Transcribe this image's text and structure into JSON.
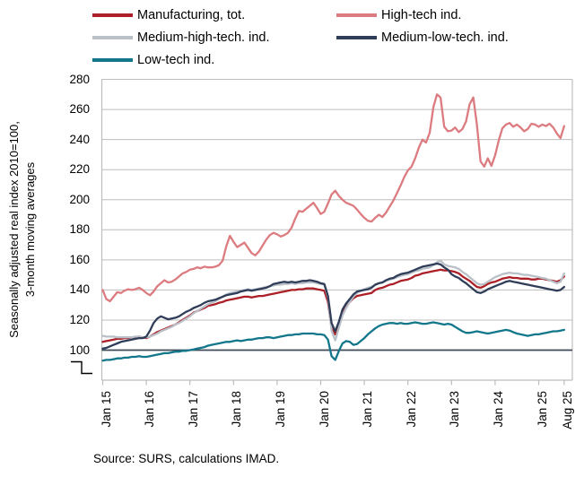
{
  "y_axis": {
    "title_line1": "Seasonally adjusted real index 2010=100,",
    "title_line2": "3-month moving averages",
    "tick_labels": [
      "280",
      "260",
      "240",
      "220",
      "200",
      "180",
      "160",
      "140",
      "120",
      "100"
    ]
  },
  "x_axis": {
    "tick_labels": [
      "Jan 15",
      "Jan 16",
      "Jan 17",
      "Jan 18",
      "Jan 19",
      "Jan 20",
      "Jan 21",
      "Jan 22",
      "Jan 23",
      "Jan 24",
      "Jan 25",
      "Aug 25"
    ]
  },
  "source": {
    "text": "Source: SURS, calculations IMAD."
  },
  "colors": {
    "gridline": "#BDBDBD",
    "reference_line_100": "#3E4A59",
    "text": "#000000"
  },
  "chart_data": {
    "type": "line",
    "title": "",
    "xlabel": "",
    "ylabel": "Seasonally adjusted real index 2010=100, 3-month moving averages",
    "x_unit": "month",
    "x_range": [
      "2015-01",
      "2025-08"
    ],
    "ylim": [
      80,
      280
    ],
    "y_ticks": [
      100,
      120,
      140,
      160,
      180,
      200,
      220,
      240,
      260,
      280
    ],
    "has_axis_break_below_100": true,
    "reference_line": 100,
    "grid": "horizontal",
    "legend_position": "top",
    "series": [
      {
        "name": "Manufacturing, tot.",
        "color": "#AC1F27",
        "values": [
          105.5,
          106,
          106.5,
          107,
          107.5,
          107.5,
          108,
          108,
          108.5,
          108.5,
          109,
          108.5,
          108,
          109,
          110.5,
          112,
          113,
          114,
          115,
          116,
          117,
          118.5,
          120,
          121.5,
          123,
          125,
          126,
          127,
          128,
          129.5,
          130,
          130.5,
          131.5,
          132,
          133,
          133.5,
          134,
          134.5,
          135,
          135.5,
          135.5,
          135,
          135.5,
          136,
          136,
          136.5,
          137,
          137.5,
          138,
          138.5,
          139,
          139.5,
          140,
          140,
          140.5,
          140.5,
          141,
          141,
          141,
          140.5,
          140,
          139.5,
          132,
          115,
          110.5,
          117,
          125,
          129,
          132,
          134.5,
          136,
          136.5,
          137,
          137.5,
          138,
          140,
          141,
          141.5,
          142.5,
          143.5,
          144,
          145,
          146,
          146.5,
          147,
          148,
          149.5,
          150,
          151,
          151.5,
          152,
          152.5,
          153,
          153.5,
          153,
          153,
          152.5,
          152,
          151,
          149,
          147.5,
          146,
          144,
          142,
          141.5,
          142.5,
          144,
          145,
          145.5,
          146.5,
          147.5,
          148,
          148.5,
          148,
          148,
          147.5,
          147.5,
          147.5,
          147,
          147,
          147.5,
          147.5,
          147,
          146.5,
          146,
          145.5,
          146.5,
          149
        ]
      },
      {
        "name": "High-tech ind.",
        "color": "#DC7B80",
        "values": [
          140,
          134,
          132.5,
          135.5,
          138.5,
          138,
          139.5,
          140.5,
          140,
          140.5,
          141.5,
          140,
          138,
          136.5,
          139,
          142.5,
          144.5,
          146.5,
          145,
          145.5,
          147,
          149,
          151,
          152,
          153.5,
          154,
          155,
          154.5,
          155.5,
          155,
          155,
          155.5,
          156.5,
          159.5,
          169,
          176,
          172,
          168.5,
          170,
          171.5,
          168,
          164.5,
          163,
          165.5,
          169.5,
          173.5,
          176.5,
          178,
          177,
          175.5,
          176.5,
          178,
          181.5,
          187.5,
          192.5,
          192,
          194,
          196,
          198,
          194.5,
          190.5,
          192,
          197.5,
          203.5,
          206,
          202.5,
          200,
          198,
          197,
          196,
          193.5,
          190.5,
          188,
          186,
          185.5,
          188,
          190,
          188.5,
          191.5,
          195.5,
          199.5,
          204.5,
          209.5,
          215,
          219.5,
          222,
          227.5,
          234.5,
          240,
          238,
          244.5,
          261.5,
          270,
          268,
          248.5,
          245.5,
          246,
          248,
          245,
          247,
          252,
          263.5,
          268,
          250,
          225.5,
          222,
          227.5,
          222.5,
          229.5,
          239.5,
          247.5,
          250,
          251,
          248.5,
          250,
          248,
          245.5,
          247,
          250.5,
          250,
          248.5,
          250,
          249,
          250.5,
          248,
          244,
          241,
          249
        ]
      },
      {
        "name": "Medium-high-tech. ind.",
        "color": "#B9C0C7",
        "values": [
          109.5,
          109,
          109,
          109,
          108.5,
          108.5,
          108.5,
          108.5,
          108.5,
          109,
          109,
          108.5,
          108.5,
          109,
          110,
          111,
          112.5,
          113.5,
          114.5,
          115.5,
          117,
          118,
          119.5,
          121,
          122.5,
          124.5,
          126,
          127.5,
          129,
          130.5,
          131.5,
          132.5,
          134,
          135.5,
          137,
          138,
          138.5,
          139,
          139.5,
          140,
          140.5,
          140,
          140.5,
          141,
          141.5,
          142,
          142.5,
          143,
          143.5,
          143.5,
          144,
          144,
          144.5,
          144,
          144.5,
          144.5,
          145,
          145,
          145,
          144.5,
          144,
          143.5,
          135,
          113,
          106.5,
          115,
          123,
          128,
          132,
          135.5,
          138,
          139.5,
          140.5,
          141.5,
          142,
          143.5,
          144.5,
          145,
          146,
          147,
          147.5,
          148.5,
          149.5,
          150,
          150.5,
          151.5,
          152.5,
          153,
          154,
          154.5,
          155,
          156.5,
          158.5,
          159.5,
          157,
          156,
          155.5,
          155,
          154,
          152,
          150.5,
          148.5,
          146.5,
          144.5,
          143.5,
          144,
          145.5,
          147,
          148.5,
          149.5,
          150.5,
          151,
          151.5,
          151,
          151,
          150.5,
          150,
          150,
          149.5,
          149,
          148.5,
          148,
          147.5,
          146.5,
          145.5,
          144.5,
          145.5,
          151
        ]
      },
      {
        "name": "Medium-low-tech. ind.",
        "color": "#2F3D59",
        "values": [
          101,
          101.5,
          102.5,
          103.5,
          104.5,
          105.5,
          106,
          106.5,
          107,
          107.5,
          108,
          108,
          109,
          113,
          118,
          121,
          122.5,
          121.5,
          120.5,
          121,
          121.5,
          122.5,
          124,
          125.5,
          126.5,
          128,
          129,
          130,
          131.5,
          132.5,
          133,
          133.5,
          134.5,
          135.5,
          136.5,
          137,
          137.5,
          138,
          139,
          139.5,
          140,
          139.5,
          140,
          140.5,
          141,
          141.5,
          142.5,
          144,
          144.5,
          145,
          145.5,
          145,
          145.5,
          145,
          145.5,
          146,
          146,
          146.5,
          146,
          145.5,
          144.5,
          144,
          136,
          118,
          112.5,
          119,
          127,
          131,
          134,
          137,
          139,
          139.5,
          140,
          140.5,
          141.5,
          143.5,
          144.5,
          145,
          146.5,
          147.5,
          148,
          149.5,
          150.5,
          151,
          151.5,
          152.5,
          153.5,
          154.5,
          155.5,
          156,
          156.5,
          157,
          157.5,
          157,
          155,
          153.5,
          150.5,
          149,
          148,
          146,
          144.5,
          142.5,
          140.5,
          138.5,
          138,
          139,
          140.5,
          141.5,
          142.5,
          143.5,
          144.5,
          145.5,
          146,
          145.5,
          145,
          144.5,
          144,
          143.5,
          143,
          142.5,
          142,
          141.5,
          141,
          140.5,
          140,
          139.5,
          140,
          142
        ]
      },
      {
        "name": "Low-tech ind.",
        "color": "#12778A",
        "values": [
          93,
          93.5,
          93.5,
          94,
          94.5,
          94.5,
          95,
          95,
          95.5,
          95.5,
          96,
          95.5,
          95.5,
          96,
          96.5,
          97,
          97.5,
          98,
          98,
          98.5,
          99,
          99,
          99.5,
          99.5,
          100,
          100.5,
          101,
          101.5,
          102,
          103,
          103.5,
          104,
          104.5,
          105,
          105.5,
          105.5,
          106,
          106.5,
          106,
          106.5,
          107,
          107,
          107.5,
          108,
          108,
          108.5,
          108.5,
          108,
          108.5,
          109,
          109.5,
          110,
          110,
          110.5,
          110.5,
          111,
          111,
          111,
          111,
          110.5,
          110.5,
          110,
          107,
          96,
          93.5,
          99.5,
          104.5,
          106,
          105.5,
          103.5,
          104,
          106,
          108,
          110.5,
          112.5,
          114.5,
          116,
          117,
          117.5,
          118,
          118,
          117.5,
          118,
          117.5,
          117.5,
          118,
          118.5,
          118,
          117.5,
          117.5,
          118,
          118.5,
          118,
          117.5,
          117,
          117.5,
          117,
          115.5,
          114,
          112.5,
          111.5,
          111.5,
          112,
          112.5,
          112,
          111.5,
          111,
          111.5,
          112,
          112.5,
          113,
          113.5,
          113,
          112,
          111,
          110.5,
          110,
          109.5,
          110,
          110.5,
          110.5,
          111,
          111.5,
          112,
          112.5,
          112.5,
          113,
          113.5
        ]
      }
    ]
  }
}
